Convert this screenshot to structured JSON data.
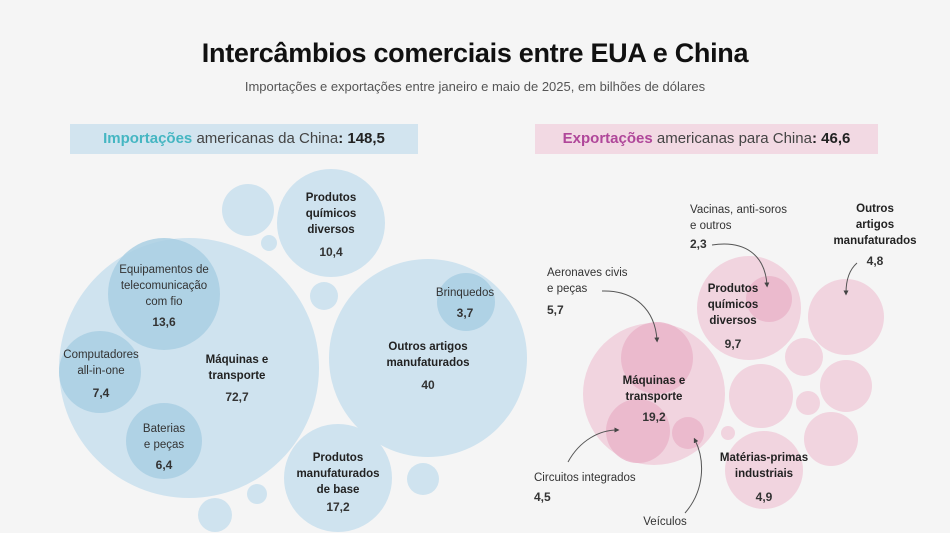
{
  "header": {
    "title": "Intercâmbios comerciais entre EUA e China",
    "subtitle": "Importações e exportações entre janeiro e maio de 2025, em bilhões de dólares"
  },
  "imports": {
    "label_accent": "Importações",
    "label_rest": " americanas da China",
    "total": ": 148,5",
    "color": "#cfe3ef",
    "inner_color": "#a9cfe3",
    "accent_color": "#45b6c2",
    "categories": [
      {
        "name": "Máquinas e\ntransporte",
        "value": "72,7"
      },
      {
        "name": "Equipamentos de\ntelecomunicação\ncom fio",
        "value": "13,6"
      },
      {
        "name": "Computadores\nall-in-one",
        "value": "7,4"
      },
      {
        "name": "Baterias\ne peças",
        "value": "6,4"
      },
      {
        "name": "Produtos\nquímicos\ndiversos",
        "value": "10,4"
      },
      {
        "name": "Outros artigos\nmanufaturados",
        "value": "40"
      },
      {
        "name": "Brinquedos",
        "value": "3,7"
      },
      {
        "name": "Produtos\nmanufaturados\nde base",
        "value": "17,2"
      }
    ]
  },
  "exports": {
    "label_accent": "Exportações",
    "label_rest": " americanas para China",
    "total": ": 46,6",
    "color": "#f1d4df",
    "inner_color": "#eab5ca",
    "accent_color": "#b0479a",
    "categories": [
      {
        "name": "Máquinas e\ntransporte",
        "value": "19,2"
      },
      {
        "name": "Aeronaves civis\ne peças",
        "value": "5,7"
      },
      {
        "name": "Circuitos integrados",
        "value": "4,5"
      },
      {
        "name": "Veículos",
        "value": ""
      },
      {
        "name": "Produtos\nquímicos\ndiversos",
        "value": "9,7"
      },
      {
        "name": "Vacinas, anti-soros\ne outros",
        "value": "2,3"
      },
      {
        "name": "Outros\nartigos\nmanufaturados",
        "value": "4,8"
      },
      {
        "name": "Matérias-primas\nindustriais",
        "value": "4,9"
      }
    ]
  }
}
